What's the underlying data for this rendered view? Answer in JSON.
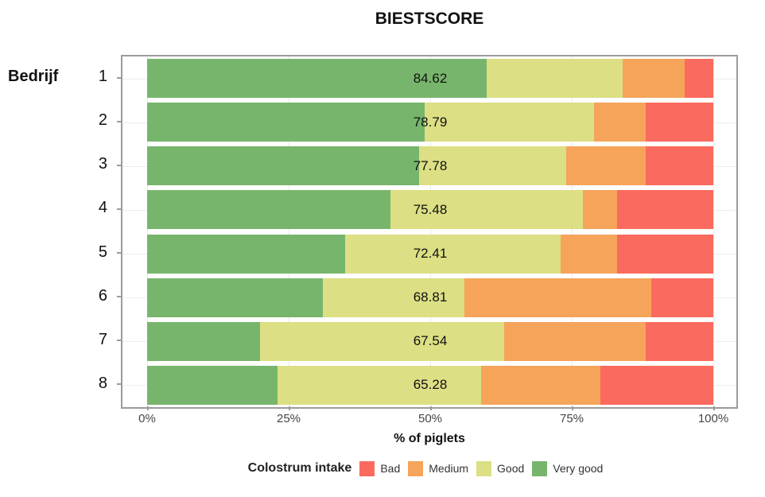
{
  "title": "BIESTSCORE",
  "y_axis": {
    "title": "Bedrijf"
  },
  "x_axis": {
    "title": "% of piglets",
    "ticks": [
      "0%",
      "25%",
      "50%",
      "75%",
      "100%"
    ]
  },
  "legend": {
    "title": "Colostrum intake",
    "items": [
      {
        "label": "Bad",
        "color": "#fb6a5e"
      },
      {
        "label": "Medium",
        "color": "#f5a45a"
      },
      {
        "label": "Good",
        "color": "#dcdf83"
      },
      {
        "label": "Very good",
        "color": "#77b56d"
      }
    ]
  },
  "chart_data": {
    "type": "bar",
    "orientation": "horizontal",
    "stacked": true,
    "title": "BIESTSCORE",
    "xlabel": "% of piglets",
    "ylabel": "Bedrijf",
    "xlim": [
      0,
      100
    ],
    "grid": true,
    "legend_position": "bottom",
    "categories": [
      "1",
      "2",
      "3",
      "4",
      "5",
      "6",
      "7",
      "8"
    ],
    "bar_labels": [
      "84.62",
      "78.79",
      "77.78",
      "75.48",
      "72.41",
      "68.81",
      "67.54",
      "65.28"
    ],
    "series": [
      {
        "name": "Very good",
        "color": "#77b56d",
        "values": [
          60,
          49,
          48,
          43,
          35,
          31,
          20,
          23
        ]
      },
      {
        "name": "Good",
        "color": "#dcdf83",
        "values": [
          24,
          30,
          26,
          34,
          38,
          25,
          43,
          36
        ]
      },
      {
        "name": "Medium",
        "color": "#f5a45a",
        "values": [
          11,
          9,
          14,
          6,
          10,
          33,
          25,
          21
        ]
      },
      {
        "name": "Bad",
        "color": "#fb6a5e",
        "values": [
          5,
          12,
          12,
          17,
          17,
          11,
          12,
          20
        ]
      }
    ]
  },
  "colors": {
    "panel_border": "#9b9b9b",
    "gridline": "#e9e9e9",
    "tick_text": "#454545"
  }
}
